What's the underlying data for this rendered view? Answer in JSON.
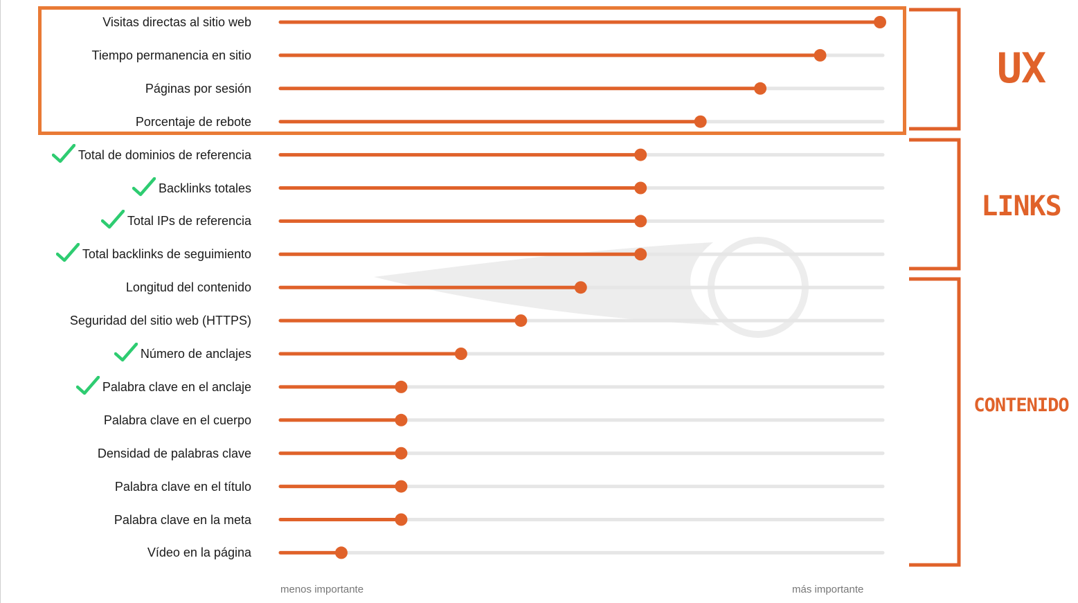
{
  "chart_data": {
    "type": "bar",
    "orientation": "horizontal",
    "style": "lollipop",
    "categories": [
      "Visitas directas al sitio web",
      "Tiempo permanencia en sitio",
      "Páginas por sesión",
      "Porcentaje de rebote",
      "Total de dominios de referencia",
      "Backlinks totales",
      "Total IPs de referencia",
      "Total backlinks de seguimiento",
      "Longitud del contenido",
      "Seguridad del sitio web (HTTPS)",
      "Número de anclajes",
      "Palabra clave en el anclaje",
      "Palabra clave en el cuerpo",
      "Densidad de palabras clave",
      "Palabra clave en el título",
      "Palabra clave en la meta",
      "Vídeo en la página"
    ],
    "values": [
      1.0,
      0.9,
      0.8,
      0.7,
      0.6,
      0.6,
      0.6,
      0.6,
      0.5,
      0.4,
      0.3,
      0.2,
      0.2,
      0.2,
      0.2,
      0.2,
      0.1
    ],
    "checked": [
      false,
      false,
      false,
      false,
      true,
      true,
      true,
      true,
      false,
      false,
      true,
      true,
      false,
      false,
      false,
      false,
      false
    ],
    "xlim": [
      0,
      1
    ],
    "xlabel_left": "menos importante",
    "xlabel_right": "más importante",
    "groups": [
      {
        "label": "UX",
        "from": 0,
        "to": 3,
        "highlighted": true
      },
      {
        "label": "LINKS",
        "from": 4,
        "to": 7,
        "highlighted": false
      },
      {
        "label": "CONTENIDO",
        "from": 8,
        "to": 16,
        "highlighted": false
      }
    ],
    "colors": {
      "bar": "#e0622a",
      "track": "#e6e6e6",
      "check": "#2ecc71",
      "highlight": "#e97a35"
    },
    "grid": false,
    "legend": "none"
  }
}
